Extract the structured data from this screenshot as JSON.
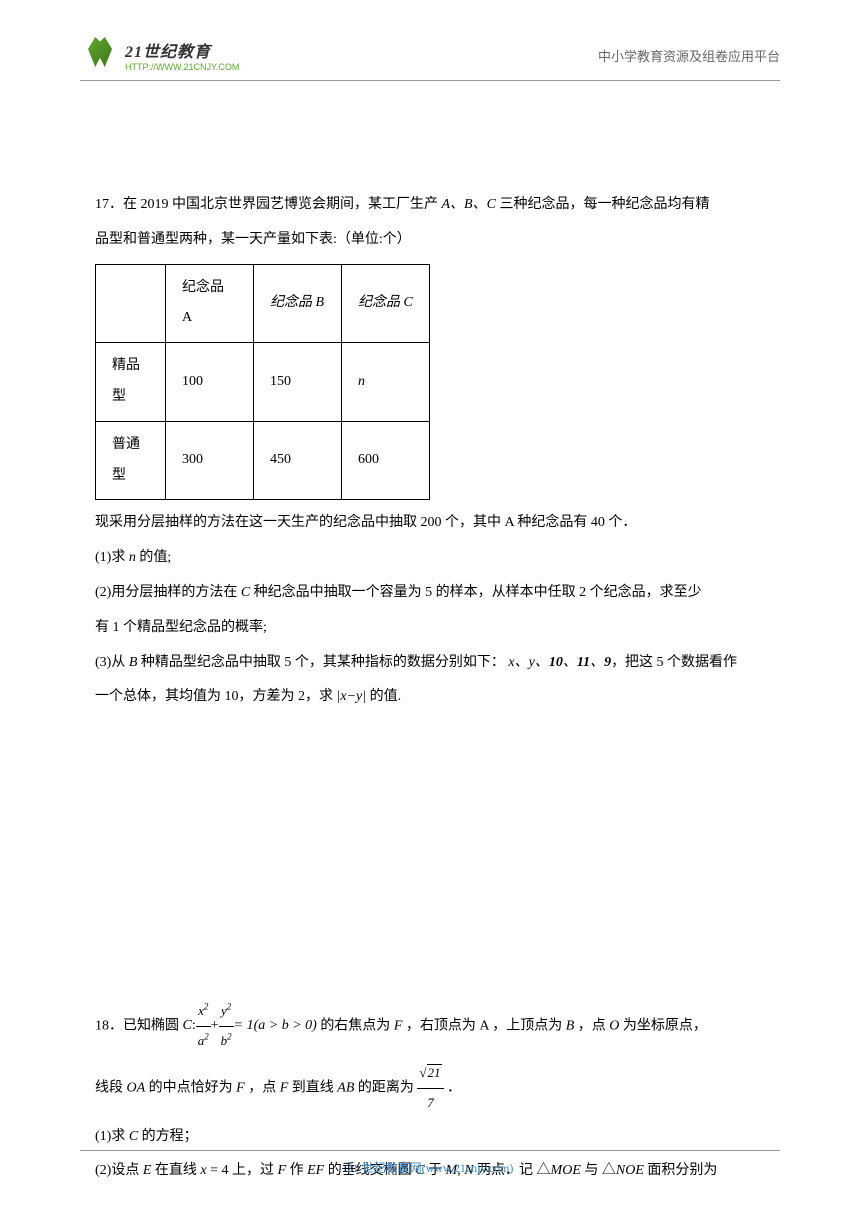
{
  "header": {
    "logo_cn": "21世纪教育",
    "logo_url": "HTTP://WWW.21CNJY.COM",
    "right_text": "中小学教育资源及组卷应用平台"
  },
  "q17": {
    "intro_part1": "17．在 2019 中国北京世界园艺博览会期间，某工厂生产",
    "intro_abc": " A、B、C ",
    "intro_part2": "三种纪念品，每一种纪念品均有精",
    "intro_line2": "品型和普通型两种，某一天产量如下表:（单位:个）",
    "table": {
      "headers": [
        "",
        "纪念品 A",
        "纪念品 B",
        "纪念品 C"
      ],
      "rows": [
        {
          "label": "精品型",
          "cells": [
            "100",
            "150",
            "n"
          ]
        },
        {
          "label": "普通型",
          "cells": [
            "300",
            "450",
            "600"
          ]
        }
      ]
    },
    "after_table": "现采用分层抽样的方法在这一天生产的纪念品中抽取 200 个，其中 A 种纪念品有 40 个．",
    "sub1": "(1)求 n 的值;",
    "sub2_p1": "(2)用分层抽样的方法在 C 种纪念品中抽取一个容量为 5 的样本，从样本中任取 2 个纪念品，求至少",
    "sub2_p2": "有 1 个精品型纪念品的概率;",
    "sub3_p1": "(3)从 B 种精品型纪念品中抽取 5 个，其某种指标的数据分别如下：",
    "sub3_data": "x、y、10、11、9",
    "sub3_p1b": "，把这 5 个数据看作",
    "sub3_p2a": "一个总体，其均值为 10，方差为 2，求",
    "sub3_abs": "|x−y|",
    "sub3_p2b": "的值."
  },
  "q18": {
    "intro_p1": "18．已知椭圆",
    "formula_c": "C",
    "formula_colon": " : ",
    "frac1_num": "x²",
    "frac1_den": "a²",
    "plus": " + ",
    "frac2_num": "y²",
    "frac2_den": "b²",
    "eq": " = 1(a > b > 0)",
    "intro_p1b": "的右焦点为 F，右顶点为 A，上顶点为 B，点 O 为坐标原点，",
    "line2a": "线段 OA 的中点恰好为 F，点 F 到直线 AB 的距离为",
    "sqrt_num": "21",
    "sqrt_den": "7",
    "line2b": " ．",
    "sub1": "(1)求 C 的方程；",
    "sub2": "(2)设点 E 在直线 x = 4 上，过 F 作 EF 的垂线交椭圆 C 于 M, N 两点．记 △MOE 与 △NOE 面积分别为"
  },
  "footer": {
    "text": "21 世纪教育网(www.21cnjy.com)"
  },
  "colors": {
    "text": "#000000",
    "header_text": "#666666",
    "footer_text": "#3d8bc7",
    "logo_green": "#5fa82e",
    "line": "#999999",
    "background": "#ffffff"
  }
}
